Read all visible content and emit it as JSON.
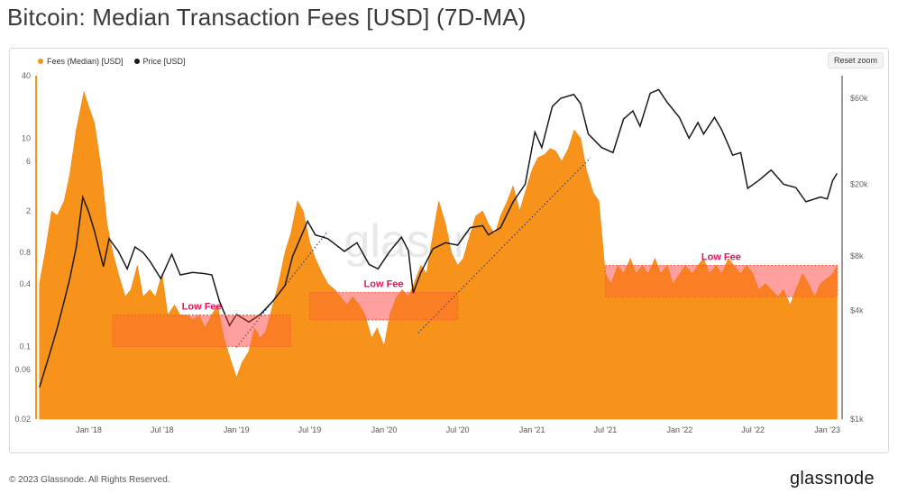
{
  "title": "Bitcoin: Median Transaction Fees [USD] (7D-MA)",
  "reset_zoom_label": "Reset zoom",
  "footer": {
    "copyright": "© 2023 Glassnode. All Rights Reserved.",
    "brand": "glassnode",
    "watermark": "glassnode"
  },
  "colors": {
    "fees": "#f7931a",
    "price": "#1a1a1a",
    "low_fee_box": "#ff5a3a",
    "low_fee_fill": "#ffc7d6",
    "low_fee_text": "#e0185a"
  },
  "chart_data": {
    "type": "area",
    "x_ticks": [
      "Jan '18",
      "Jul '18",
      "Jan '19",
      "Jul '19",
      "Jan '20",
      "Jul '20",
      "Jan '21",
      "Jul '21",
      "Jan '22",
      "Jul '22",
      "Jan '23"
    ],
    "y_left_ticks": [
      "40",
      "10",
      "6",
      "2",
      "0.8",
      "0.4",
      "0.1",
      "0.06",
      "0.02"
    ],
    "y_right_ticks": [
      "$60k",
      "$20k",
      "$8k",
      "$4k",
      "$1k"
    ],
    "y_left_scale": "log",
    "y_right_scale": "log",
    "ylim_left": [
      0.02,
      40
    ],
    "ylim_right": [
      1000,
      80000
    ],
    "series": [
      {
        "name": "Fees (Median) [USD]",
        "axis": "left",
        "points": [
          [
            "2017-09-01",
            0.4
          ],
          [
            "2017-09-15",
            0.8
          ],
          [
            "2017-10-01",
            2.0
          ],
          [
            "2017-10-15",
            1.8
          ],
          [
            "2017-11-01",
            2.5
          ],
          [
            "2017-11-15",
            4.5
          ],
          [
            "2017-12-01",
            12
          ],
          [
            "2017-12-20",
            28
          ],
          [
            "2018-01-01",
            20
          ],
          [
            "2018-01-15",
            14
          ],
          [
            "2018-02-01",
            5
          ],
          [
            "2018-02-15",
            1.5
          ],
          [
            "2018-03-01",
            0.8
          ],
          [
            "2018-03-15",
            0.5
          ],
          [
            "2018-04-01",
            0.3
          ],
          [
            "2018-04-15",
            0.35
          ],
          [
            "2018-05-01",
            0.6
          ],
          [
            "2018-05-15",
            0.3
          ],
          [
            "2018-06-01",
            0.35
          ],
          [
            "2018-06-15",
            0.3
          ],
          [
            "2018-07-01",
            0.5
          ],
          [
            "2018-07-15",
            0.2
          ],
          [
            "2018-08-01",
            0.25
          ],
          [
            "2018-08-15",
            0.2
          ],
          [
            "2018-09-01",
            0.2
          ],
          [
            "2018-09-15",
            0.18
          ],
          [
            "2018-10-01",
            0.2
          ],
          [
            "2018-10-15",
            0.15
          ],
          [
            "2018-11-01",
            0.2
          ],
          [
            "2018-11-15",
            0.25
          ],
          [
            "2018-12-01",
            0.12
          ],
          [
            "2018-12-15",
            0.08
          ],
          [
            "2019-01-01",
            0.05
          ],
          [
            "2019-01-15",
            0.07
          ],
          [
            "2019-02-01",
            0.09
          ],
          [
            "2019-02-15",
            0.15
          ],
          [
            "2019-03-01",
            0.12
          ],
          [
            "2019-03-15",
            0.14
          ],
          [
            "2019-04-01",
            0.25
          ],
          [
            "2019-04-15",
            0.4
          ],
          [
            "2019-05-01",
            0.8
          ],
          [
            "2019-05-15",
            1.2
          ],
          [
            "2019-06-01",
            2.5
          ],
          [
            "2019-06-15",
            2.0
          ],
          [
            "2019-07-01",
            1.0
          ],
          [
            "2019-07-15",
            0.7
          ],
          [
            "2019-08-01",
            0.5
          ],
          [
            "2019-08-15",
            0.4
          ],
          [
            "2019-09-01",
            0.35
          ],
          [
            "2019-09-15",
            0.3
          ],
          [
            "2019-10-01",
            0.25
          ],
          [
            "2019-10-15",
            0.3
          ],
          [
            "2019-11-01",
            0.25
          ],
          [
            "2019-11-15",
            0.2
          ],
          [
            "2019-12-01",
            0.12
          ],
          [
            "2019-12-15",
            0.15
          ],
          [
            "2020-01-01",
            0.1
          ],
          [
            "2020-01-15",
            0.2
          ],
          [
            "2020-02-01",
            0.3
          ],
          [
            "2020-02-15",
            0.35
          ],
          [
            "2020-03-01",
            0.3
          ],
          [
            "2020-03-15",
            0.4
          ],
          [
            "2020-04-01",
            0.6
          ],
          [
            "2020-04-15",
            0.5
          ],
          [
            "2020-05-01",
            1.2
          ],
          [
            "2020-05-15",
            2.5
          ],
          [
            "2020-06-01",
            1.5
          ],
          [
            "2020-06-15",
            0.8
          ],
          [
            "2020-07-01",
            0.6
          ],
          [
            "2020-07-15",
            0.7
          ],
          [
            "2020-08-01",
            1.2
          ],
          [
            "2020-08-15",
            1.8
          ],
          [
            "2020-09-01",
            2.0
          ],
          [
            "2020-09-15",
            1.5
          ],
          [
            "2020-10-01",
            1.2
          ],
          [
            "2020-10-15",
            1.8
          ],
          [
            "2020-11-01",
            2.5
          ],
          [
            "2020-11-15",
            3.5
          ],
          [
            "2020-12-01",
            2.0
          ],
          [
            "2020-12-15",
            3.0
          ],
          [
            "2021-01-01",
            5.0
          ],
          [
            "2021-01-15",
            6.5
          ],
          [
            "2021-02-01",
            7.0
          ],
          [
            "2021-02-15",
            8.0
          ],
          [
            "2021-03-01",
            7.5
          ],
          [
            "2021-03-15",
            6.0
          ],
          [
            "2021-04-01",
            8.0
          ],
          [
            "2021-04-15",
            12
          ],
          [
            "2021-05-01",
            10
          ],
          [
            "2021-05-15",
            5.0
          ],
          [
            "2021-06-01",
            3.0
          ],
          [
            "2021-06-15",
            2.5
          ],
          [
            "2021-07-01",
            0.5
          ],
          [
            "2021-07-15",
            0.4
          ],
          [
            "2021-08-01",
            0.6
          ],
          [
            "2021-08-15",
            0.5
          ],
          [
            "2021-09-01",
            0.7
          ],
          [
            "2021-09-15",
            0.5
          ],
          [
            "2021-10-01",
            0.6
          ],
          [
            "2021-10-15",
            0.5
          ],
          [
            "2021-11-01",
            0.7
          ],
          [
            "2021-11-15",
            0.5
          ],
          [
            "2021-12-01",
            0.6
          ],
          [
            "2021-12-15",
            0.4
          ],
          [
            "2022-01-01",
            0.5
          ],
          [
            "2022-01-15",
            0.6
          ],
          [
            "2022-02-01",
            0.5
          ],
          [
            "2022-02-15",
            0.6
          ],
          [
            "2022-03-01",
            0.7
          ],
          [
            "2022-03-15",
            0.5
          ],
          [
            "2022-04-01",
            0.6
          ],
          [
            "2022-04-15",
            0.5
          ],
          [
            "2022-05-01",
            0.7
          ],
          [
            "2022-05-15",
            0.6
          ],
          [
            "2022-06-01",
            0.5
          ],
          [
            "2022-06-15",
            0.6
          ],
          [
            "2022-07-01",
            0.5
          ],
          [
            "2022-07-15",
            0.35
          ],
          [
            "2022-08-01",
            0.4
          ],
          [
            "2022-08-15",
            0.35
          ],
          [
            "2022-09-01",
            0.3
          ],
          [
            "2022-09-15",
            0.35
          ],
          [
            "2022-10-01",
            0.25
          ],
          [
            "2022-10-15",
            0.35
          ],
          [
            "2022-11-01",
            0.5
          ],
          [
            "2022-11-15",
            0.4
          ],
          [
            "2022-12-01",
            0.3
          ],
          [
            "2022-12-15",
            0.4
          ],
          [
            "2023-01-01",
            0.45
          ],
          [
            "2023-01-15",
            0.5
          ],
          [
            "2023-01-25",
            0.6
          ]
        ]
      },
      {
        "name": "Price [USD]",
        "axis": "right",
        "points": [
          [
            "2017-09-01",
            1500
          ],
          [
            "2017-09-15",
            1900
          ],
          [
            "2017-10-01",
            2500
          ],
          [
            "2017-10-15",
            3200
          ],
          [
            "2017-11-01",
            4500
          ],
          [
            "2017-11-15",
            6000
          ],
          [
            "2017-12-01",
            9000
          ],
          [
            "2017-12-17",
            17000
          ],
          [
            "2018-01-01",
            14000
          ],
          [
            "2018-01-15",
            11000
          ],
          [
            "2018-02-06",
            7000
          ],
          [
            "2018-02-20",
            10000
          ],
          [
            "2018-03-15",
            8500
          ],
          [
            "2018-04-06",
            6800
          ],
          [
            "2018-04-25",
            9000
          ],
          [
            "2018-05-15",
            8400
          ],
          [
            "2018-06-01",
            7500
          ],
          [
            "2018-06-28",
            6000
          ],
          [
            "2018-07-25",
            8200
          ],
          [
            "2018-08-15",
            6300
          ],
          [
            "2018-09-15",
            6500
          ],
          [
            "2018-10-15",
            6400
          ],
          [
            "2018-11-01",
            6300
          ],
          [
            "2018-11-20",
            4500
          ],
          [
            "2018-12-15",
            3300
          ],
          [
            "2019-01-01",
            3800
          ],
          [
            "2019-02-01",
            3450
          ],
          [
            "2019-03-01",
            3800
          ],
          [
            "2019-04-01",
            4500
          ],
          [
            "2019-05-01",
            5500
          ],
          [
            "2019-05-20",
            8000
          ],
          [
            "2019-06-26",
            12500
          ],
          [
            "2019-07-15",
            10500
          ],
          [
            "2019-08-15",
            10000
          ],
          [
            "2019-09-25",
            8500
          ],
          [
            "2019-10-26",
            9500
          ],
          [
            "2019-11-25",
            7200
          ],
          [
            "2019-12-17",
            6800
          ],
          [
            "2020-01-15",
            8500
          ],
          [
            "2020-02-13",
            10200
          ],
          [
            "2020-03-01",
            8600
          ],
          [
            "2020-03-13",
            5000
          ],
          [
            "2020-04-01",
            6500
          ],
          [
            "2020-05-01",
            8800
          ],
          [
            "2020-06-01",
            9500
          ],
          [
            "2020-07-01",
            9200
          ],
          [
            "2020-08-01",
            11500
          ],
          [
            "2020-09-01",
            11800
          ],
          [
            "2020-09-15",
            10500
          ],
          [
            "2020-10-15",
            11500
          ],
          [
            "2020-11-15",
            16000
          ],
          [
            "2020-12-15",
            20000
          ],
          [
            "2021-01-08",
            39000
          ],
          [
            "2021-01-25",
            32000
          ],
          [
            "2021-02-20",
            54000
          ],
          [
            "2021-03-13",
            60000
          ],
          [
            "2021-04-14",
            63000
          ],
          [
            "2021-05-01",
            56000
          ],
          [
            "2021-05-20",
            38000
          ],
          [
            "2021-06-22",
            32000
          ],
          [
            "2021-07-20",
            30000
          ],
          [
            "2021-08-15",
            46000
          ],
          [
            "2021-09-07",
            51000
          ],
          [
            "2021-09-25",
            42000
          ],
          [
            "2021-10-20",
            64000
          ],
          [
            "2021-11-10",
            67000
          ],
          [
            "2021-12-01",
            57000
          ],
          [
            "2021-12-31",
            47000
          ],
          [
            "2022-01-24",
            36000
          ],
          [
            "2022-02-15",
            44000
          ],
          [
            "2022-03-01",
            38000
          ],
          [
            "2022-03-28",
            47000
          ],
          [
            "2022-04-15",
            40000
          ],
          [
            "2022-05-12",
            29000
          ],
          [
            "2022-06-01",
            30000
          ],
          [
            "2022-06-18",
            19000
          ],
          [
            "2022-07-15",
            21000
          ],
          [
            "2022-08-15",
            24000
          ],
          [
            "2022-09-15",
            20000
          ],
          [
            "2022-10-15",
            19200
          ],
          [
            "2022-11-09",
            16000
          ],
          [
            "2022-12-15",
            17000
          ],
          [
            "2023-01-01",
            16600
          ],
          [
            "2023-01-14",
            21000
          ],
          [
            "2023-01-25",
            23000
          ]
        ]
      }
    ],
    "annotations": [
      {
        "label": "Low Fee",
        "x_range": [
          "2018-03-01",
          "2019-05-15"
        ],
        "y_range": [
          0.1,
          0.2
        ]
      },
      {
        "label": "Low Fee",
        "x_range": [
          "2019-07-01",
          "2020-07-01"
        ],
        "y_range": [
          0.18,
          0.33
        ]
      },
      {
        "label": "Low Fee",
        "x_range": [
          "2021-07-01",
          "2023-01-25"
        ],
        "y_range": [
          0.3,
          0.6
        ]
      }
    ],
    "legend_position": "top-left",
    "grid": false
  }
}
